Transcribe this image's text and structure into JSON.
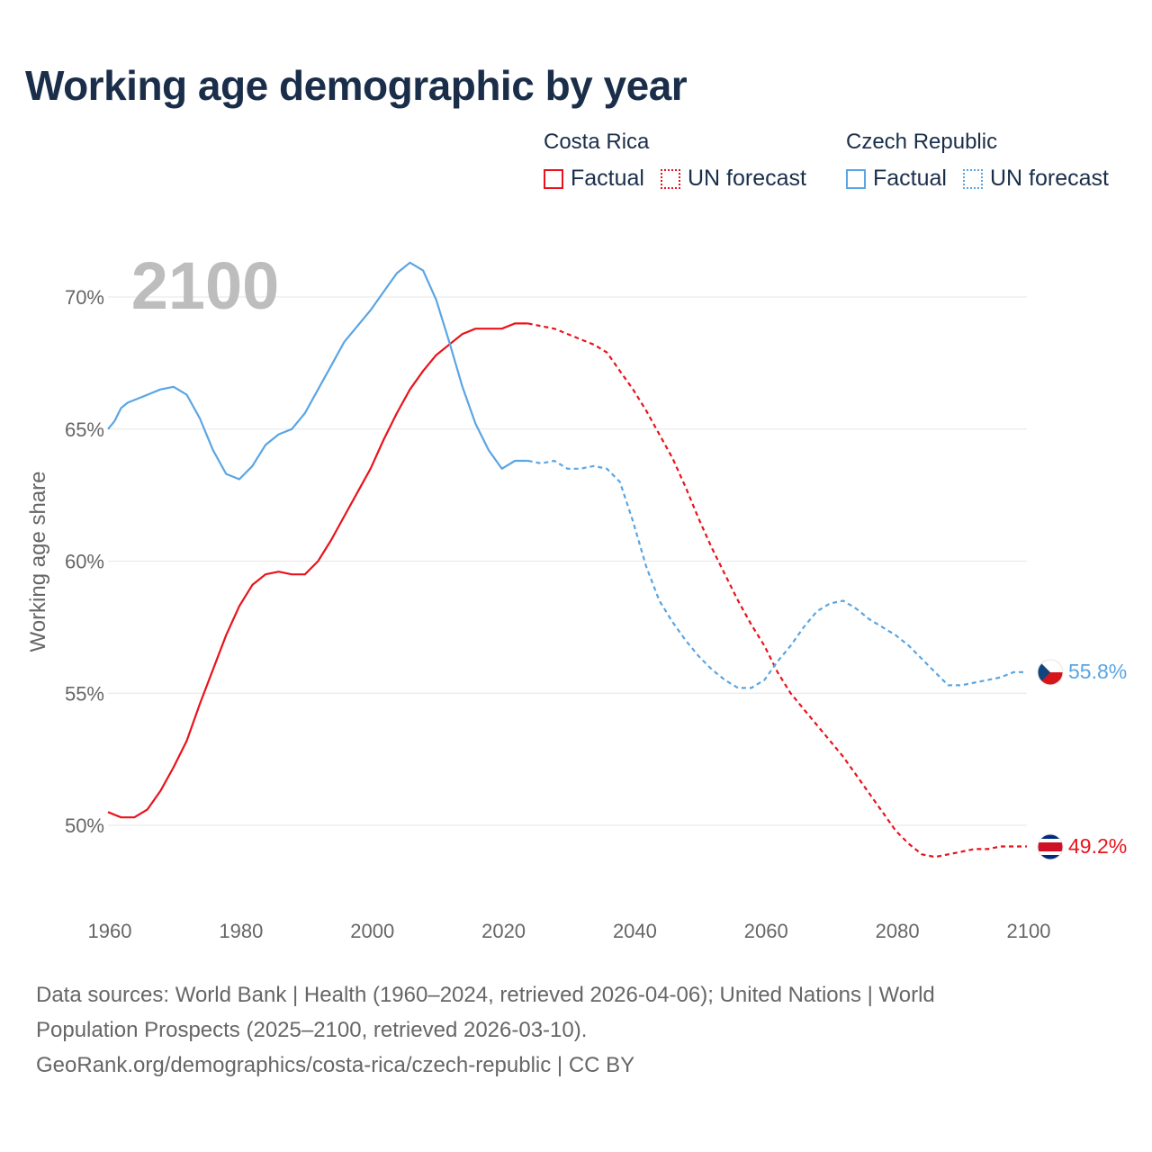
{
  "title": "Working age demographic by year",
  "legend": {
    "groups": [
      {
        "country": "Costa Rica",
        "factual_label": "Factual",
        "forecast_label": "UN forecast"
      },
      {
        "country": "Czech Republic",
        "factual_label": "Factual",
        "forecast_label": "UN forecast"
      }
    ]
  },
  "chart_data": {
    "type": "line",
    "title": "Working age demographic by year",
    "year_watermark": "2100",
    "ylabel": "Working age share",
    "xlabel": "",
    "xlim": [
      1960,
      2100
    ],
    "ylim": [
      48,
      72
    ],
    "x_ticks": [
      1960,
      1980,
      2000,
      2020,
      2040,
      2060,
      2080,
      2100
    ],
    "y_ticks": [
      50,
      55,
      60,
      65,
      70
    ],
    "y_tick_labels": [
      "50%",
      "55%",
      "60%",
      "65%",
      "70%"
    ],
    "grid": true,
    "factual_until": 2024,
    "series": [
      {
        "name": "Costa Rica",
        "color": "#e8131b",
        "end_label": "49.2%",
        "points": [
          [
            1960,
            50.5
          ],
          [
            1962,
            50.3
          ],
          [
            1964,
            50.3
          ],
          [
            1966,
            50.6
          ],
          [
            1968,
            51.3
          ],
          [
            1970,
            52.2
          ],
          [
            1972,
            53.2
          ],
          [
            1974,
            54.6
          ],
          [
            1976,
            55.9
          ],
          [
            1978,
            57.2
          ],
          [
            1980,
            58.3
          ],
          [
            1982,
            59.1
          ],
          [
            1984,
            59.5
          ],
          [
            1986,
            59.6
          ],
          [
            1988,
            59.5
          ],
          [
            1990,
            59.5
          ],
          [
            1992,
            60.0
          ],
          [
            1994,
            60.8
          ],
          [
            1996,
            61.7
          ],
          [
            1998,
            62.6
          ],
          [
            2000,
            63.5
          ],
          [
            2002,
            64.6
          ],
          [
            2004,
            65.6
          ],
          [
            2006,
            66.5
          ],
          [
            2008,
            67.2
          ],
          [
            2010,
            67.8
          ],
          [
            2012,
            68.2
          ],
          [
            2014,
            68.6
          ],
          [
            2016,
            68.8
          ],
          [
            2018,
            68.8
          ],
          [
            2020,
            68.8
          ],
          [
            2022,
            69.0
          ],
          [
            2024,
            69.0
          ],
          [
            2026,
            68.9
          ],
          [
            2028,
            68.8
          ],
          [
            2030,
            68.6
          ],
          [
            2032,
            68.4
          ],
          [
            2034,
            68.2
          ],
          [
            2036,
            67.9
          ],
          [
            2038,
            67.2
          ],
          [
            2040,
            66.5
          ],
          [
            2042,
            65.7
          ],
          [
            2044,
            64.8
          ],
          [
            2046,
            63.9
          ],
          [
            2048,
            62.8
          ],
          [
            2050,
            61.6
          ],
          [
            2052,
            60.5
          ],
          [
            2054,
            59.5
          ],
          [
            2056,
            58.5
          ],
          [
            2058,
            57.6
          ],
          [
            2060,
            56.8
          ],
          [
            2062,
            55.8
          ],
          [
            2064,
            55.0
          ],
          [
            2066,
            54.4
          ],
          [
            2068,
            53.8
          ],
          [
            2070,
            53.2
          ],
          [
            2072,
            52.6
          ],
          [
            2074,
            51.9
          ],
          [
            2076,
            51.2
          ],
          [
            2078,
            50.5
          ],
          [
            2080,
            49.8
          ],
          [
            2082,
            49.3
          ],
          [
            2084,
            48.9
          ],
          [
            2086,
            48.8
          ],
          [
            2088,
            48.9
          ],
          [
            2090,
            49.0
          ],
          [
            2092,
            49.1
          ],
          [
            2094,
            49.1
          ],
          [
            2096,
            49.2
          ],
          [
            2098,
            49.2
          ],
          [
            2100,
            49.2
          ]
        ]
      },
      {
        "name": "Czech Republic",
        "color": "#5aa5e3",
        "end_label": "55.8%",
        "points": [
          [
            1960,
            65.0
          ],
          [
            1961,
            65.3
          ],
          [
            1962,
            65.8
          ],
          [
            1963,
            66.0
          ],
          [
            1964,
            66.1
          ],
          [
            1966,
            66.3
          ],
          [
            1968,
            66.5
          ],
          [
            1970,
            66.6
          ],
          [
            1972,
            66.3
          ],
          [
            1974,
            65.4
          ],
          [
            1976,
            64.2
          ],
          [
            1978,
            63.3
          ],
          [
            1980,
            63.1
          ],
          [
            1982,
            63.6
          ],
          [
            1984,
            64.4
          ],
          [
            1986,
            64.8
          ],
          [
            1988,
            65.0
          ],
          [
            1990,
            65.6
          ],
          [
            1992,
            66.5
          ],
          [
            1994,
            67.4
          ],
          [
            1996,
            68.3
          ],
          [
            1998,
            68.9
          ],
          [
            2000,
            69.5
          ],
          [
            2002,
            70.2
          ],
          [
            2004,
            70.9
          ],
          [
            2006,
            71.3
          ],
          [
            2008,
            71.0
          ],
          [
            2010,
            69.9
          ],
          [
            2012,
            68.3
          ],
          [
            2014,
            66.6
          ],
          [
            2016,
            65.2
          ],
          [
            2018,
            64.2
          ],
          [
            2020,
            63.5
          ],
          [
            2022,
            63.8
          ],
          [
            2024,
            63.8
          ],
          [
            2026,
            63.7
          ],
          [
            2028,
            63.8
          ],
          [
            2030,
            63.5
          ],
          [
            2032,
            63.5
          ],
          [
            2034,
            63.6
          ],
          [
            2036,
            63.5
          ],
          [
            2038,
            63.0
          ],
          [
            2040,
            61.5
          ],
          [
            2042,
            59.8
          ],
          [
            2044,
            58.5
          ],
          [
            2046,
            57.7
          ],
          [
            2048,
            57.0
          ],
          [
            2050,
            56.4
          ],
          [
            2052,
            55.9
          ],
          [
            2054,
            55.5
          ],
          [
            2056,
            55.2
          ],
          [
            2058,
            55.2
          ],
          [
            2060,
            55.5
          ],
          [
            2062,
            56.2
          ],
          [
            2064,
            56.8
          ],
          [
            2066,
            57.5
          ],
          [
            2068,
            58.1
          ],
          [
            2070,
            58.4
          ],
          [
            2072,
            58.5
          ],
          [
            2074,
            58.2
          ],
          [
            2076,
            57.8
          ],
          [
            2078,
            57.5
          ],
          [
            2080,
            57.2
          ],
          [
            2082,
            56.8
          ],
          [
            2084,
            56.3
          ],
          [
            2086,
            55.8
          ],
          [
            2088,
            55.3
          ],
          [
            2090,
            55.3
          ],
          [
            2092,
            55.4
          ],
          [
            2094,
            55.5
          ],
          [
            2096,
            55.6
          ],
          [
            2098,
            55.8
          ],
          [
            2100,
            55.8
          ]
        ]
      }
    ]
  },
  "footer": {
    "line1": "Data sources: World Bank | Health (1960–2024, retrieved 2026-04-06); United Nations | World",
    "line2": "Population Prospects (2025–2100, retrieved 2026-03-10).",
    "line3": "GeoRank.org/demographics/costa-rica/czech-republic | CC BY"
  }
}
